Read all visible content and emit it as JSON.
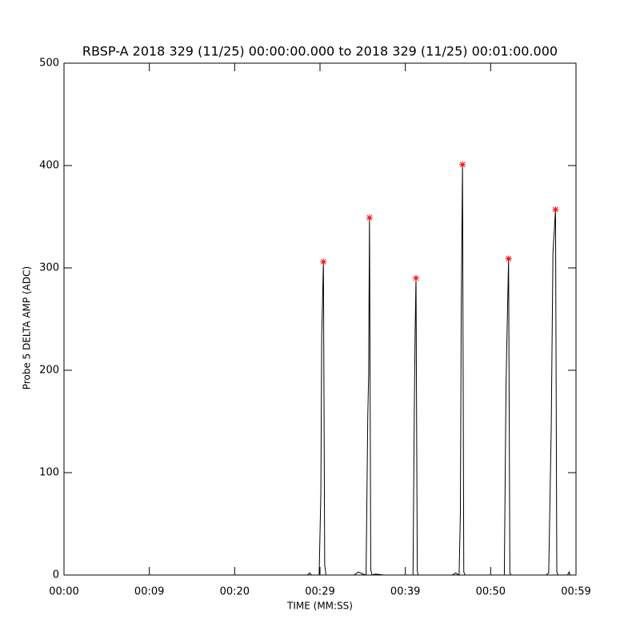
{
  "chart_data": {
    "type": "line",
    "title": "RBSP-A 2018 329 (11/25) 00:00:00.000 to 2018 329 (11/25) 00:01:00.000",
    "x_label": "TIME (MM:SS)",
    "y_label": "Probe 5 DELTA AMP (ADC)",
    "xlim": [
      0,
      60
    ],
    "ylim": [
      0,
      500
    ],
    "xticks": [
      {
        "value": 0,
        "label": "00:00"
      },
      {
        "value": 10,
        "label": "00:09"
      },
      {
        "value": 20,
        "label": "00:20"
      },
      {
        "value": 30,
        "label": "00:29"
      },
      {
        "value": 40,
        "label": "00:39"
      },
      {
        "value": 50,
        "label": "00:50"
      },
      {
        "value": 60,
        "label": "00:59"
      }
    ],
    "yticks": [
      0,
      100,
      200,
      300,
      400,
      500
    ],
    "series": [
      {
        "color": "#000000",
        "x": [
          0,
          28.5,
          28.8,
          29.0,
          29.9,
          30.1,
          30.2,
          30.4,
          30.55,
          30.7,
          34.0,
          34.5,
          35.0,
          35.4,
          35.6,
          35.7,
          35.8,
          35.95,
          36.1,
          36.5,
          37.5,
          40.9,
          41.05,
          41.15,
          41.25,
          41.4,
          41.5,
          45.5,
          45.9,
          46.3,
          46.45,
          46.55,
          46.7,
          46.85,
          47.0,
          51.6,
          51.8,
          51.9,
          52.1,
          52.25,
          52.4,
          56.5,
          56.8,
          57.1,
          57.3,
          57.6,
          57.75,
          57.9,
          59,
          59.2,
          59.3,
          60
        ],
        "values": [
          0,
          0,
          2,
          0,
          0,
          80,
          233,
          306,
          10,
          0,
          0,
          3,
          1,
          0,
          155,
          195,
          349,
          5,
          0,
          1,
          0,
          0,
          160,
          238,
          290,
          4,
          0,
          0,
          2,
          0,
          60,
          258,
          401,
          3,
          0,
          0,
          185,
          228,
          309,
          2,
          0,
          0,
          2,
          145,
          315,
          357,
          3,
          0,
          0,
          3,
          0,
          0
        ]
      }
    ],
    "peaks": {
      "color": "#ff0000",
      "x": [
        30.4,
        35.8,
        41.25,
        46.7,
        52.1,
        57.6
      ],
      "values": [
        306,
        349,
        290,
        401,
        309,
        357
      ]
    }
  }
}
